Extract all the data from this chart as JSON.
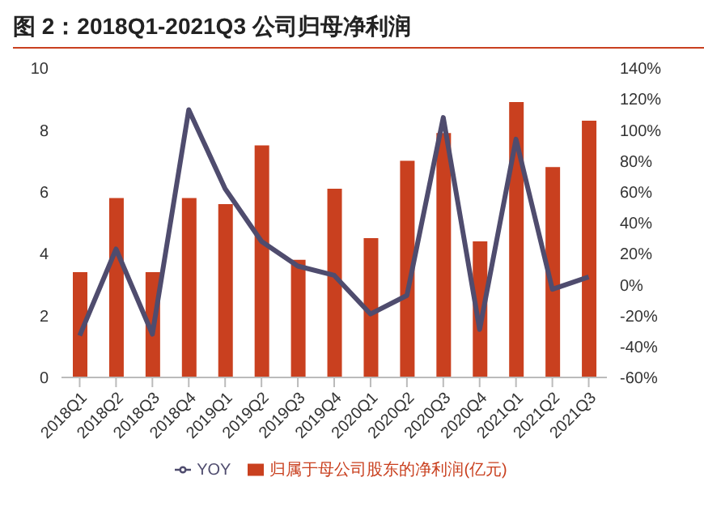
{
  "chart_data": {
    "type": "bar",
    "title": "图 2：2018Q1-2021Q3 公司归母净利润",
    "categories": [
      "2018Q1",
      "2018Q2",
      "2018Q3",
      "2018Q4",
      "2019Q1",
      "2019Q2",
      "2019Q3",
      "2019Q4",
      "2020Q1",
      "2020Q2",
      "2020Q3",
      "2020Q4",
      "2021Q1",
      "2021Q2",
      "2021Q3"
    ],
    "series": [
      {
        "name": "归属于母公司股东的净利润(亿元)",
        "color": "#c9401f",
        "values": [
          3.4,
          5.8,
          3.4,
          5.8,
          5.6,
          7.5,
          3.8,
          6.1,
          4.5,
          7.0,
          7.9,
          4.4,
          8.9,
          6.8,
          8.3
        ]
      },
      {
        "name": "YOY",
        "type": "line",
        "axis": "y2",
        "color": "#4f4c6e",
        "values": [
          -33,
          23,
          -32,
          113,
          62,
          28,
          12,
          6,
          -19,
          -7,
          108,
          -29,
          94,
          -3,
          5
        ]
      }
    ],
    "ylim": [
      0,
      10
    ],
    "yticks": [
      0,
      2,
      4,
      6,
      8,
      10
    ],
    "y2lim": [
      -60,
      140
    ],
    "y2ticks": [
      {
        "value": -60,
        "label": "-60%"
      },
      {
        "value": -40,
        "label": "-40%"
      },
      {
        "value": -20,
        "label": "-20%"
      },
      {
        "value": 0,
        "label": "0%"
      },
      {
        "value": 20,
        "label": "20%"
      },
      {
        "value": 40,
        "label": "40%"
      },
      {
        "value": 60,
        "label": "60%"
      },
      {
        "value": 80,
        "label": "80%"
      },
      {
        "value": 100,
        "label": "100%"
      },
      {
        "value": 120,
        "label": "120%"
      },
      {
        "value": 140,
        "label": "140%"
      }
    ],
    "legend": "bottom",
    "grid": false,
    "marker": "none"
  }
}
